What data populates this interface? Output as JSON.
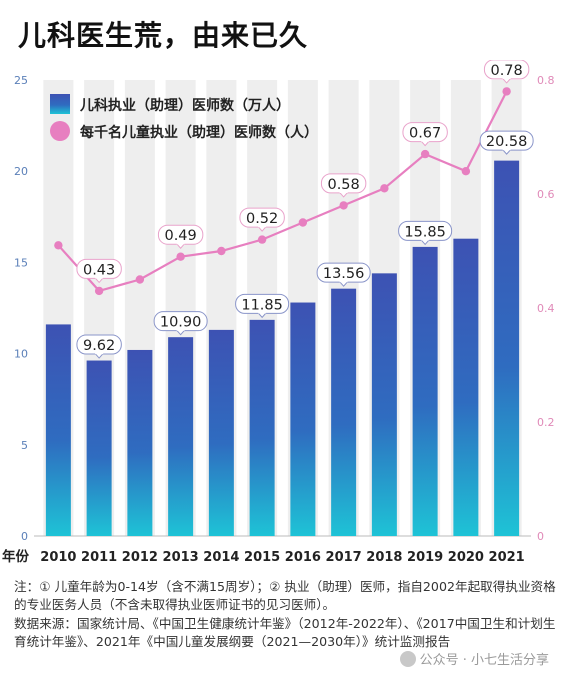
{
  "title": "儿科医生荒，由来已久",
  "chart_data": {
    "type": "bar",
    "x_axis_label": "年份",
    "categories": [
      "2010",
      "2011",
      "2012",
      "2013",
      "2014",
      "2015",
      "2016",
      "2017",
      "2018",
      "2019",
      "2020",
      "2021"
    ],
    "series": [
      {
        "name": "儿科执业（助理）医师数（万人）",
        "type": "bar",
        "axis": "left",
        "values": [
          11.6,
          9.62,
          10.2,
          10.9,
          11.3,
          11.85,
          12.8,
          13.56,
          14.4,
          15.85,
          16.3,
          20.58
        ],
        "labeled": [
          false,
          true,
          false,
          true,
          false,
          true,
          false,
          true,
          false,
          true,
          false,
          true
        ],
        "labels": [
          "",
          "9.62",
          "",
          "10.90",
          "",
          "11.85",
          "",
          "13.56",
          "",
          "15.85",
          "",
          "20.58"
        ]
      },
      {
        "name": "每千名儿童执业（助理）医师数（人）",
        "type": "line",
        "axis": "right",
        "values": [
          0.51,
          0.43,
          0.45,
          0.49,
          0.5,
          0.52,
          0.55,
          0.58,
          0.61,
          0.67,
          0.64,
          0.78
        ],
        "labeled": [
          false,
          true,
          false,
          true,
          false,
          true,
          false,
          true,
          false,
          true,
          false,
          true
        ],
        "labels": [
          "",
          "0.43",
          "",
          "0.49",
          "",
          "0.52",
          "",
          "0.58",
          "",
          "0.67",
          "",
          "0.78"
        ]
      }
    ],
    "y_left": {
      "min": 0,
      "max": 25,
      "ticks": [
        "0",
        "5",
        "10",
        "15",
        "20",
        "25"
      ]
    },
    "y_right": {
      "min": 0,
      "max": 0.8,
      "ticks": [
        "0",
        "0.2",
        "0.4",
        "0.6",
        "0.8"
      ]
    },
    "legend_position": "top-left",
    "colors": {
      "bar_top": "#3d52b3",
      "bar_bottom": "#1ec3d6",
      "line": "#e77fc0",
      "stripe": "#eeeeee",
      "left_axis_text": "#5a7fb8",
      "right_axis_text": "#e08ab8"
    }
  },
  "notes": [
    "注：① 儿童年龄为0-14岁（含不满15周岁）；② 执业（助理）医师，指自2002年起取得执业资格的专业医务人员（不含未取得执业医师证书的见习医师）。",
    "数据来源：国家统计局、《中国卫生健康统计年鉴》（2012年-2022年）、《2017中国卫生和计划生育统计年鉴》、2021年《中国儿童发展纲要（2021—2030年）》统计监测报告"
  ],
  "watermark": "公众号 · 小七生活分享"
}
